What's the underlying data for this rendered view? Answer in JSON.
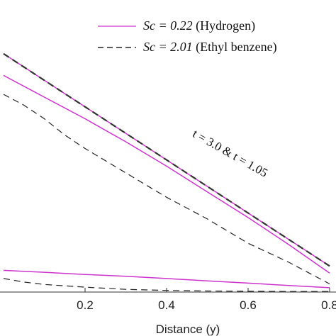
{
  "chart_data": {
    "type": "line",
    "xlabel": "Distance (y)",
    "ylabel": "",
    "xlim": [
      0.0,
      0.8
    ],
    "ylim": [
      0.0,
      1.0
    ],
    "xticks": [
      0.2,
      0.4,
      0.6,
      0.8
    ],
    "xtick_labels": [
      "0.2",
      "0.4",
      "0.6",
      "0.8"
    ],
    "grid": false,
    "legend_position": "top-right",
    "legend": [
      {
        "math": "Sc = 0.22",
        "text": " (Hydrogen)",
        "color": "#cc33cc",
        "dash": "solid"
      },
      {
        "math": "Sc = 2.01",
        "text": " (Ethyl benzene)",
        "color": "#222222",
        "dash": "dashed"
      }
    ],
    "annotation": "t = 3.0 & t = 1.05",
    "series": [
      {
        "legend_index": 0,
        "color": "#cc33cc",
        "dash": "solid",
        "width": 1.5,
        "x": [
          0.0,
          0.1,
          0.2,
          0.3,
          0.4,
          0.5,
          0.6,
          0.7,
          0.8
        ],
        "y": [
          0.88,
          0.782,
          0.684,
          0.586,
          0.488,
          0.39,
          0.292,
          0.194,
          0.096
        ]
      },
      {
        "legend_index": 1,
        "color": "#333333",
        "dash": "dashed",
        "width": 2.2,
        "x": [
          0.0,
          0.1,
          0.2,
          0.3,
          0.4,
          0.5,
          0.6,
          0.7,
          0.8
        ],
        "y": [
          0.88,
          0.782,
          0.684,
          0.586,
          0.488,
          0.39,
          0.292,
          0.194,
          0.096
        ]
      },
      {
        "legend_index": 0,
        "color": "#cc33cc",
        "dash": "solid",
        "width": 1.5,
        "x": [
          0.0,
          0.1,
          0.2,
          0.3,
          0.4,
          0.5,
          0.6,
          0.7,
          0.8
        ],
        "y": [
          0.8,
          0.72,
          0.64,
          0.555,
          0.465,
          0.37,
          0.275,
          0.175,
          0.07
        ]
      },
      {
        "legend_index": 1,
        "color": "#222222",
        "dash": "dashed",
        "width": 1.2,
        "x": [
          0.0,
          0.05,
          0.1,
          0.15,
          0.2,
          0.3,
          0.4,
          0.5,
          0.6,
          0.7,
          0.8
        ],
        "y": [
          0.73,
          0.69,
          0.64,
          0.58,
          0.53,
          0.44,
          0.35,
          0.27,
          0.18,
          0.11,
          0.03
        ]
      },
      {
        "legend_index": 0,
        "color": "#cc33cc",
        "dash": "solid",
        "width": 1.5,
        "x": [
          0.0,
          0.1,
          0.2,
          0.3,
          0.4,
          0.5,
          0.6,
          0.7,
          0.8
        ],
        "y": [
          0.08,
          0.073,
          0.065,
          0.058,
          0.05,
          0.041,
          0.033,
          0.024,
          0.016
        ]
      },
      {
        "legend_index": 1,
        "color": "#222222",
        "dash": "dashed",
        "width": 1.2,
        "x": [
          0.0,
          0.05,
          0.1,
          0.2,
          0.3,
          0.4,
          0.5,
          0.6,
          0.7,
          0.8
        ],
        "y": [
          0.05,
          0.037,
          0.028,
          0.018,
          0.01,
          0.006,
          0.004,
          0.003,
          0.002,
          0.002
        ]
      }
    ]
  }
}
